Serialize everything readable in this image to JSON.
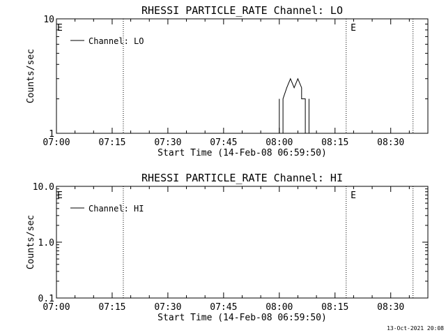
{
  "chart_data": [
    {
      "type": "line",
      "title": "RHESSI PARTICLE_RATE Channel: LO",
      "xlabel": "Start Time (14-Feb-08 06:59:50)",
      "ylabel": "Counts/sec",
      "y_scale": "log",
      "ylim": [
        1,
        10
      ],
      "y_ticks": [
        "1",
        "10"
      ],
      "xlim": [
        "07:00",
        "08:40"
      ],
      "x_ticks": [
        "07:00",
        "07:15",
        "07:30",
        "07:45",
        "08:00",
        "08:15",
        "08:30"
      ],
      "grid": false,
      "legend": "top-left",
      "series": [
        {
          "name": "Channel: LO",
          "x": [
            "08:00",
            "08:00",
            "08:00",
            "08:00",
            "08:01",
            "08:01",
            "08:01",
            "08:02",
            "08:02",
            "08:03",
            "08:03",
            "08:04",
            "08:05",
            "08:05",
            "08:06",
            "08:06",
            "08:06",
            "08:07",
            "08:07",
            "08:08",
            "08:08",
            "08:08",
            "08:08"
          ],
          "values": [
            1,
            2,
            2,
            1,
            1,
            2,
            2,
            2.5,
            2.5,
            3,
            3,
            2.5,
            3,
            3,
            2.5,
            2.5,
            2,
            2,
            1,
            1,
            2,
            2,
            1
          ]
        }
      ],
      "annotations": [
        {
          "text": "E",
          "x": "07:00"
        },
        {
          "text": "E",
          "x": "08:19"
        }
      ],
      "vertical_lines": [
        "07:18",
        "08:18",
        "08:36"
      ]
    },
    {
      "type": "line",
      "title": "RHESSI PARTICLE_RATE Channel: HI",
      "xlabel": "Start Time (14-Feb-08 06:59:50)",
      "ylabel": "Counts/sec",
      "y_scale": "log",
      "ylim": [
        0.1,
        10
      ],
      "y_ticks": [
        "0.1",
        "1.0",
        "10.0"
      ],
      "xlim": [
        "07:00",
        "08:40"
      ],
      "x_ticks": [
        "07:00",
        "07:15",
        "07:30",
        "07:45",
        "08:00",
        "08:15",
        "08:30"
      ],
      "grid": false,
      "legend": "top-left",
      "series": [
        {
          "name": "Channel: HI",
          "x": [],
          "values": []
        }
      ],
      "annotations": [
        {
          "text": "E",
          "x": "07:00"
        },
        {
          "text": "E",
          "x": "08:19"
        }
      ],
      "vertical_lines": [
        "07:18",
        "08:18",
        "08:36"
      ]
    }
  ],
  "footer": {
    "timestamp": "13-Oct-2021 20:08"
  }
}
